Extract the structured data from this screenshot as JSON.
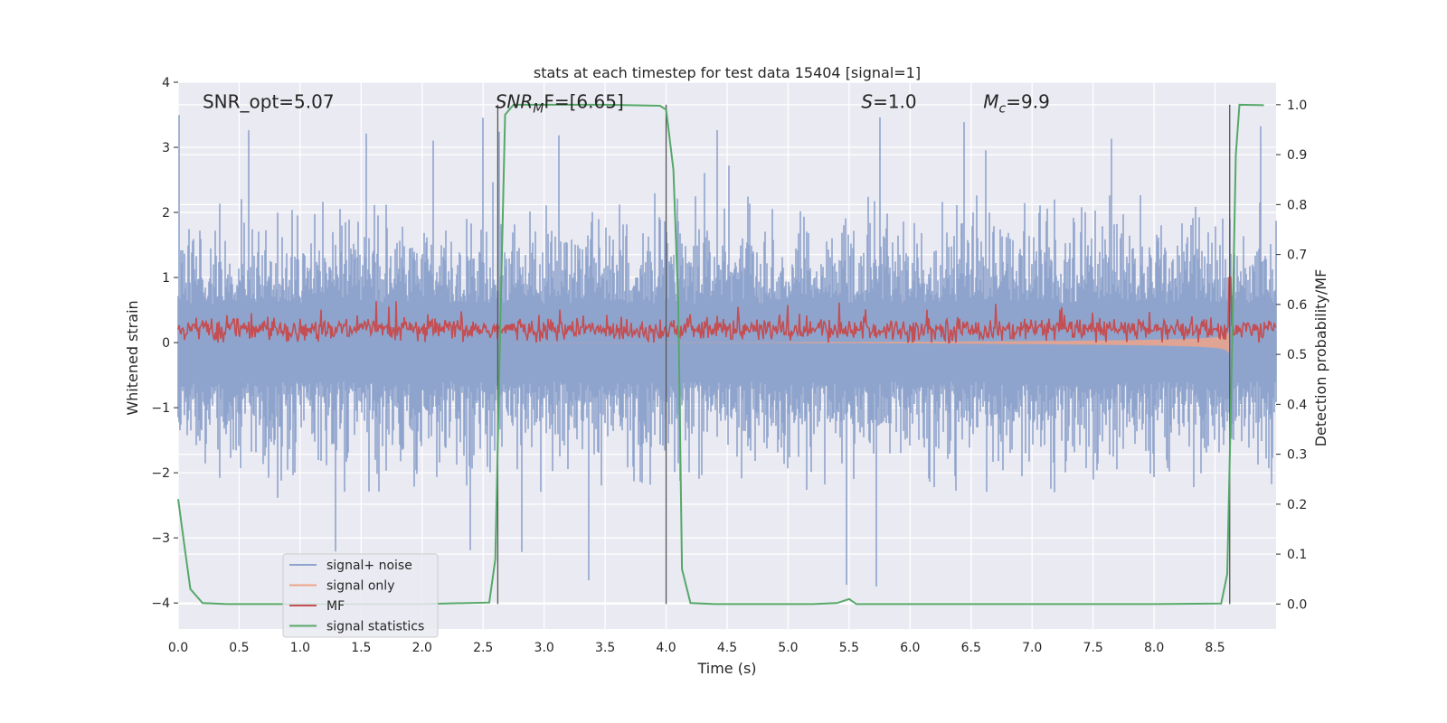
{
  "chart_data": {
    "type": "line",
    "title": "stats at each timestep for test data 15404 [signal=1]",
    "xlabel": "Time (s)",
    "ylabel": "Whitened strain",
    "y2label": "Detection probability/MF",
    "xlim": [
      0.0,
      9.0
    ],
    "ylim": [
      -4.4,
      4.0
    ],
    "y2lim": [
      -0.05,
      1.045
    ],
    "grid": true,
    "legend_position": "lower-left",
    "background_color": "#eaeaf2",
    "xticks": [
      "0.0",
      "0.5",
      "1.0",
      "1.5",
      "2.0",
      "2.5",
      "3.0",
      "3.5",
      "4.0",
      "4.5",
      "5.0",
      "5.5",
      "6.0",
      "6.5",
      "7.0",
      "7.5",
      "8.0",
      "8.5"
    ],
    "yticks": [
      "4",
      "3",
      "2",
      "1",
      "0",
      "−1",
      "−2",
      "−3",
      "−4"
    ],
    "y2ticks": [
      "1.0",
      "0.9",
      "0.8",
      "0.7",
      "0.6",
      "0.5",
      "0.4",
      "0.3",
      "0.2",
      "0.1",
      "0.0"
    ],
    "annotations": [
      {
        "text": "SNR_opt=5.07",
        "x": 0.2,
        "y": 3.7
      },
      {
        "mathMain": "SNR",
        "mathSub": "M",
        "mathTail": "F=[6.65]",
        "x": 2.6,
        "y": 3.7
      },
      {
        "mathMain": "S",
        "mathTail": "=1.0",
        "x": 5.6,
        "y": 3.7
      },
      {
        "mathMain": "M",
        "mathSub": "c",
        "mathTail": "=9.9",
        "x": 6.6,
        "y": 3.7
      }
    ],
    "series": [
      {
        "name": "signal+ noise",
        "color": "#8fa4cd",
        "noise_envelope": {
          "typical_max": 2.0,
          "peak_max": 3.6,
          "typical_min": -2.0,
          "peak_min": -4.0
        }
      },
      {
        "name": "signal only",
        "color": "#eda588",
        "chirp_end_time": 8.62,
        "chirp_peak_amplitude": 0.5
      },
      {
        "name": "MF",
        "color": "#c44e52",
        "baseline": 0.05,
        "typical_max": 0.45,
        "peak_max": 1.0
      },
      {
        "name": "signal statistics",
        "color": "#55a868",
        "axis": "right",
        "points": [
          [
            0.0,
            0.21
          ],
          [
            0.05,
            0.12
          ],
          [
            0.1,
            0.03
          ],
          [
            0.2,
            0.002
          ],
          [
            0.4,
            0.0
          ],
          [
            1.0,
            0.0
          ],
          [
            2.0,
            0.0
          ],
          [
            2.55,
            0.003
          ],
          [
            2.6,
            0.09
          ],
          [
            2.64,
            0.55
          ],
          [
            2.68,
            0.98
          ],
          [
            2.75,
            1.0
          ],
          [
            3.5,
            1.0
          ],
          [
            3.95,
            0.998
          ],
          [
            4.0,
            0.99
          ],
          [
            4.06,
            0.87
          ],
          [
            4.1,
            0.6
          ],
          [
            4.13,
            0.07
          ],
          [
            4.2,
            0.002
          ],
          [
            4.4,
            0.0
          ],
          [
            5.2,
            0.0
          ],
          [
            5.4,
            0.002
          ],
          [
            5.5,
            0.01
          ],
          [
            5.56,
            0.0
          ],
          [
            6.0,
            0.0
          ],
          [
            7.0,
            0.0
          ],
          [
            8.0,
            0.0
          ],
          [
            8.55,
            0.001
          ],
          [
            8.6,
            0.06
          ],
          [
            8.63,
            0.4
          ],
          [
            8.67,
            0.9
          ],
          [
            8.7,
            1.0
          ],
          [
            8.9,
            0.999
          ]
        ]
      }
    ],
    "vlines_right_axis": [
      {
        "x": 2.62,
        "ymin": 0.0,
        "ymax": 1.0
      },
      {
        "x": 4.0,
        "ymin": 0.0,
        "ymax": 1.0
      },
      {
        "x": 8.62,
        "ymin": 0.0,
        "ymax": 1.0
      }
    ]
  }
}
